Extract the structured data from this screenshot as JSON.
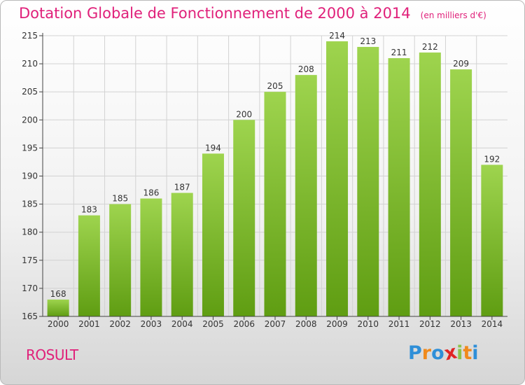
{
  "header": {
    "title": "Dotation Globale de Fonctionnement de 2000 à 2014",
    "unit": "(en milliers d'€)"
  },
  "commune": "ROSULT",
  "logo": {
    "text": "Proxiti",
    "letters": [
      {
        "char": "P",
        "color": "#2f8fd8"
      },
      {
        "char": "r",
        "color": "#f08a1c"
      },
      {
        "char": "o",
        "color": "#2f8fd8"
      },
      {
        "char": "x",
        "color": "#e02424"
      },
      {
        "char": "i",
        "color": "#8bc34a"
      },
      {
        "char": "t",
        "color": "#f08a1c"
      },
      {
        "char": "i",
        "color": "#2f8fd8"
      }
    ]
  },
  "colors": {
    "accent": "#e0207a",
    "bar_top": "#9ed44e",
    "bar_bottom": "#5f9d12",
    "grid": "#d2d2d2",
    "axis": "#444444"
  },
  "chart_data": {
    "type": "bar",
    "title": "Dotation Globale de Fonctionnement de 2000 à 2014",
    "subtitle": "(en milliers d'€)",
    "categories": [
      "2000",
      "2001",
      "2002",
      "2003",
      "2004",
      "2005",
      "2006",
      "2007",
      "2008",
      "2009",
      "2010",
      "2011",
      "2012",
      "2013",
      "2014"
    ],
    "values": [
      168,
      183,
      185,
      186,
      187,
      194,
      200,
      205,
      208,
      214,
      213,
      211,
      212,
      209,
      192
    ],
    "ylim": [
      165,
      215
    ],
    "yticks": [
      165,
      170,
      175,
      180,
      185,
      190,
      195,
      200,
      205,
      210,
      215
    ],
    "grid": true,
    "legend": "none",
    "data_labels": true
  }
}
